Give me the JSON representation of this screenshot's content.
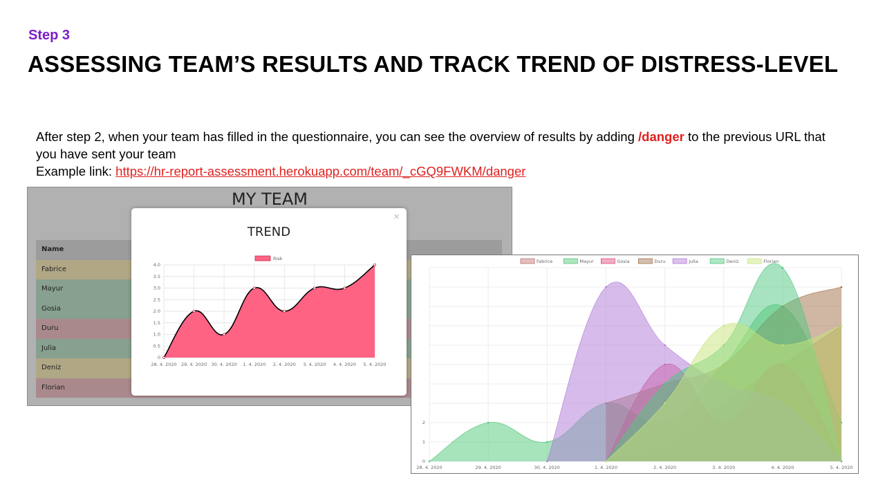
{
  "slide": {
    "step": "Step 3",
    "title": "ASSESSING TEAM’S RESULTS AND TRACK TREND OF DISTRESS-LEVEL",
    "body_line1": "After step 2, when your team has filled in the questionnaire, you can see the overview of results by adding ",
    "body_highlight": "/danger",
    "body_line1_end": " to the previous URL that you have sent your team",
    "example_label": "Example link: ",
    "example_link": "https://hr-report-assessment.herokuapp.com/team/_cGQ9FWKM/danger"
  },
  "team_panel": {
    "title": "MY TEAM",
    "header": "Name",
    "rows": [
      {
        "name": "Fabrice",
        "color": "#b0a785"
      },
      {
        "name": "Mayur",
        "color": "#87a08f"
      },
      {
        "name": "Gosia",
        "color": "#87a08f"
      },
      {
        "name": "Duru",
        "color": "#aa898d"
      },
      {
        "name": "Julia",
        "color": "#87a08f"
      },
      {
        "name": "Deniz",
        "color": "#b0a785"
      },
      {
        "name": "Florian",
        "color": "#aa898d"
      }
    ]
  },
  "modal": {
    "title": "TREND",
    "close": "×"
  },
  "colors": {
    "risk": "#ff6384",
    "accent_purple": "#7b1fc9",
    "link_red": "#e0201f"
  },
  "chart_data": [
    {
      "type": "area",
      "categories": [
        "28. 4. 2020",
        "29. 4. 2020",
        "30. 4. 2020",
        "1. 4. 2020",
        "2. 4. 2020",
        "3. 4. 2020",
        "4. 4. 2020",
        "5. 4. 2020"
      ],
      "series": [
        {
          "name": "Risk",
          "values": [
            0,
            2,
            1,
            3,
            2,
            3,
            3,
            4
          ],
          "color": "#ff6384"
        }
      ],
      "yticks": [
        "4.0",
        "3.5",
        "3.0",
        "2.5",
        "2.0",
        "1.5",
        "1.0",
        "0.5",
        "0"
      ],
      "ylim": [
        0,
        4
      ],
      "legend": "top"
    },
    {
      "type": "area",
      "categories": [
        "28. 4. 2020",
        "29. 4. 2020",
        "30. 4. 2020",
        "1. 4. 2020",
        "2. 4. 2020",
        "3. 4. 2020",
        "4. 4. 2020",
        "5. 4. 2020"
      ],
      "yticks": [
        "2",
        "1",
        "0"
      ],
      "ylim": [
        0,
        10
      ],
      "legend": "top",
      "series": [
        {
          "name": "Fabrice",
          "color": "#c07070",
          "values": [
            null,
            null,
            null,
            0,
            1,
            3,
            5,
            7
          ]
        },
        {
          "name": "Mayur",
          "color": "#4fc777",
          "values": [
            0,
            2,
            1,
            3,
            2,
            5,
            8,
            2
          ]
        },
        {
          "name": "Gosia",
          "color": "#e04a7a",
          "values": [
            null,
            null,
            null,
            0,
            5,
            2,
            5,
            0
          ]
        },
        {
          "name": "Duru",
          "color": "#a0704a",
          "values": [
            null,
            null,
            null,
            3,
            4,
            5,
            8,
            9
          ]
        },
        {
          "name": "Julia",
          "color": "#b07ad8",
          "values": [
            null,
            null,
            0,
            9,
            6,
            4,
            3,
            0
          ]
        },
        {
          "name": "Deniz",
          "color": "#50c880",
          "values": [
            null,
            null,
            null,
            0,
            4,
            6,
            10,
            0
          ]
        },
        {
          "name": "Florian",
          "color": "#c8e67a",
          "values": [
            null,
            null,
            null,
            0,
            3,
            7,
            6,
            7
          ]
        }
      ]
    }
  ]
}
